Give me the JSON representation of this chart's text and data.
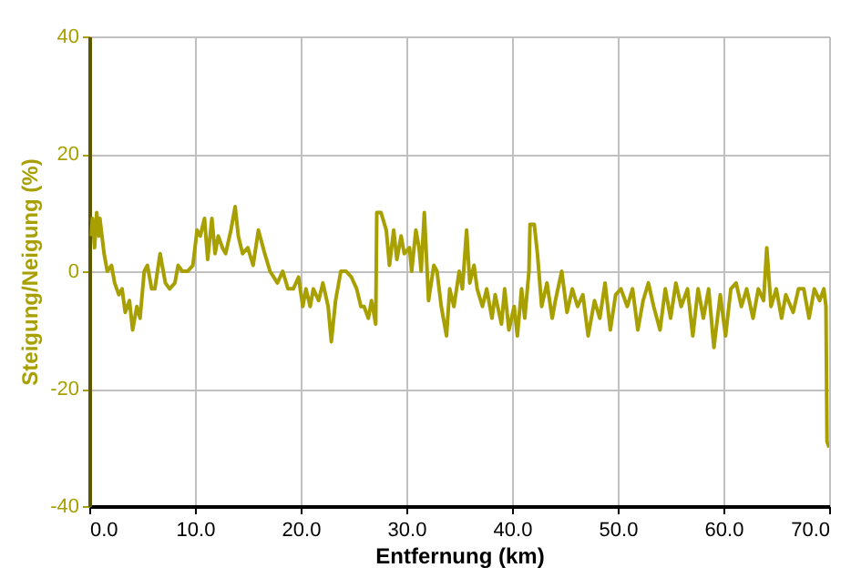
{
  "chart_data": {
    "type": "line",
    "xlabel": "Entfernung (km)",
    "ylabel": "Steigung/Neigung (%)",
    "xlim": [
      0,
      70
    ],
    "ylim": [
      -40,
      40
    ],
    "xticks": [
      {
        "value": 0,
        "label": "0.0"
      },
      {
        "value": 10,
        "label": "10.0"
      },
      {
        "value": 20,
        "label": "20.0"
      },
      {
        "value": 30,
        "label": "30.0"
      },
      {
        "value": 40,
        "label": "40.0"
      },
      {
        "value": 50,
        "label": "50.0"
      },
      {
        "value": 60,
        "label": "60.0"
      },
      {
        "value": 70,
        "label": "70.0"
      }
    ],
    "yticks": [
      -40,
      -20,
      0,
      20,
      40
    ],
    "grid": true,
    "legend": false,
    "marker": "none",
    "line_style": "solid",
    "x": [
      0.2,
      0.3,
      0.5,
      0.7,
      0.9,
      1.0,
      1.4,
      1.7,
      2.1,
      2.4,
      2.8,
      3.1,
      3.4,
      3.8,
      4.1,
      4.5,
      4.8,
      5.2,
      5.5,
      5.9,
      6.2,
      6.7,
      7.2,
      7.6,
      8.1,
      8.4,
      8.8,
      9.3,
      9.8,
      10.2,
      10.5,
      10.9,
      11.2,
      11.6,
      11.9,
      12.2,
      12.6,
      12.9,
      13.4,
      13.8,
      14.1,
      14.5,
      15.0,
      15.5,
      16.0,
      16.6,
      17.1,
      17.8,
      18.3,
      18.8,
      19.3,
      19.8,
      20.2,
      20.5,
      20.9,
      21.2,
      21.7,
      22.1,
      22.6,
      22.9,
      23.3,
      23.8,
      24.3,
      24.8,
      25.3,
      25.7,
      26.0,
      26.4,
      26.7,
      27.1,
      27.2,
      27.6,
      28.1,
      28.4,
      28.8,
      29.1,
      29.5,
      29.8,
      30.3,
      30.5,
      30.9,
      31.2,
      31.4,
      31.7,
      32.1,
      32.6,
      32.9,
      33.3,
      33.8,
      34.1,
      34.5,
      35.0,
      35.3,
      35.7,
      36.0,
      36.4,
      36.7,
      37.2,
      37.6,
      38.1,
      38.4,
      39.0,
      39.3,
      39.7,
      40.2,
      40.5,
      40.9,
      41.2,
      41.6,
      41.7,
      42.1,
      42.4,
      42.8,
      43.3,
      43.8,
      44.1,
      44.7,
      45.2,
      45.7,
      46.2,
      46.7,
      47.2,
      47.8,
      48.3,
      48.8,
      49.3,
      49.8,
      50.3,
      50.9,
      51.4,
      51.9,
      52.4,
      52.9,
      53.4,
      54.0,
      54.5,
      55.0,
      55.5,
      56.0,
      56.6,
      57.1,
      57.6,
      58.1,
      58.6,
      59.1,
      59.7,
      60.2,
      60.7,
      61.2,
      61.7,
      62.2,
      62.8,
      63.3,
      63.8,
      64.1,
      64.5,
      65.0,
      65.5,
      65.9,
      66.6,
      67.1,
      67.6,
      68.1,
      68.6,
      69.1,
      69.5,
      69.7,
      69.8,
      70.0
    ],
    "series": [
      {
        "color": "#a8a000",
        "values": [
          6,
          9,
          4,
          10,
          6,
          9,
          3,
          0,
          1,
          -2,
          -4,
          -3,
          -7,
          -5,
          -10,
          -6,
          -8,
          0,
          1,
          -3,
          -3,
          3,
          -2,
          -3,
          -2,
          1,
          0,
          0,
          1,
          7,
          6,
          9,
          2,
          9,
          3,
          6,
          4,
          3,
          7,
          11,
          6,
          3,
          4,
          1,
          7,
          3,
          0,
          -2,
          0,
          -3,
          -3,
          -1,
          -6,
          -3,
          -6,
          -3,
          -5,
          -2,
          -6,
          -12,
          -5,
          0,
          0,
          -1,
          -3,
          -6,
          -6,
          -8,
          -5,
          -9,
          10,
          10,
          7,
          1,
          7,
          2,
          6,
          3,
          4,
          0,
          7,
          4,
          0,
          10,
          -5,
          1,
          0,
          -6,
          -11,
          -3,
          -6,
          0,
          -3,
          7,
          -2,
          1,
          -3,
          -6,
          -3,
          -8,
          -4,
          -9,
          -3,
          -10,
          -6,
          -11,
          -3,
          -8,
          0,
          8,
          8,
          3,
          -6,
          -2,
          -8,
          -5,
          0,
          -7,
          -3,
          -6,
          -4,
          -11,
          -5,
          -8,
          -2,
          -10,
          -4,
          -3,
          -6,
          -3,
          -10,
          -5,
          -2,
          -6,
          -10,
          -3,
          -8,
          -2,
          -6,
          -3,
          -11,
          -3,
          -8,
          -3,
          -13,
          -4,
          -11,
          -3,
          -2,
          -6,
          -3,
          -8,
          -3,
          -5,
          4,
          -6,
          -3,
          -8,
          -4,
          -7,
          -3,
          -3,
          -8,
          -3,
          -5,
          -3,
          -6,
          -29,
          -30
        ]
      }
    ]
  }
}
